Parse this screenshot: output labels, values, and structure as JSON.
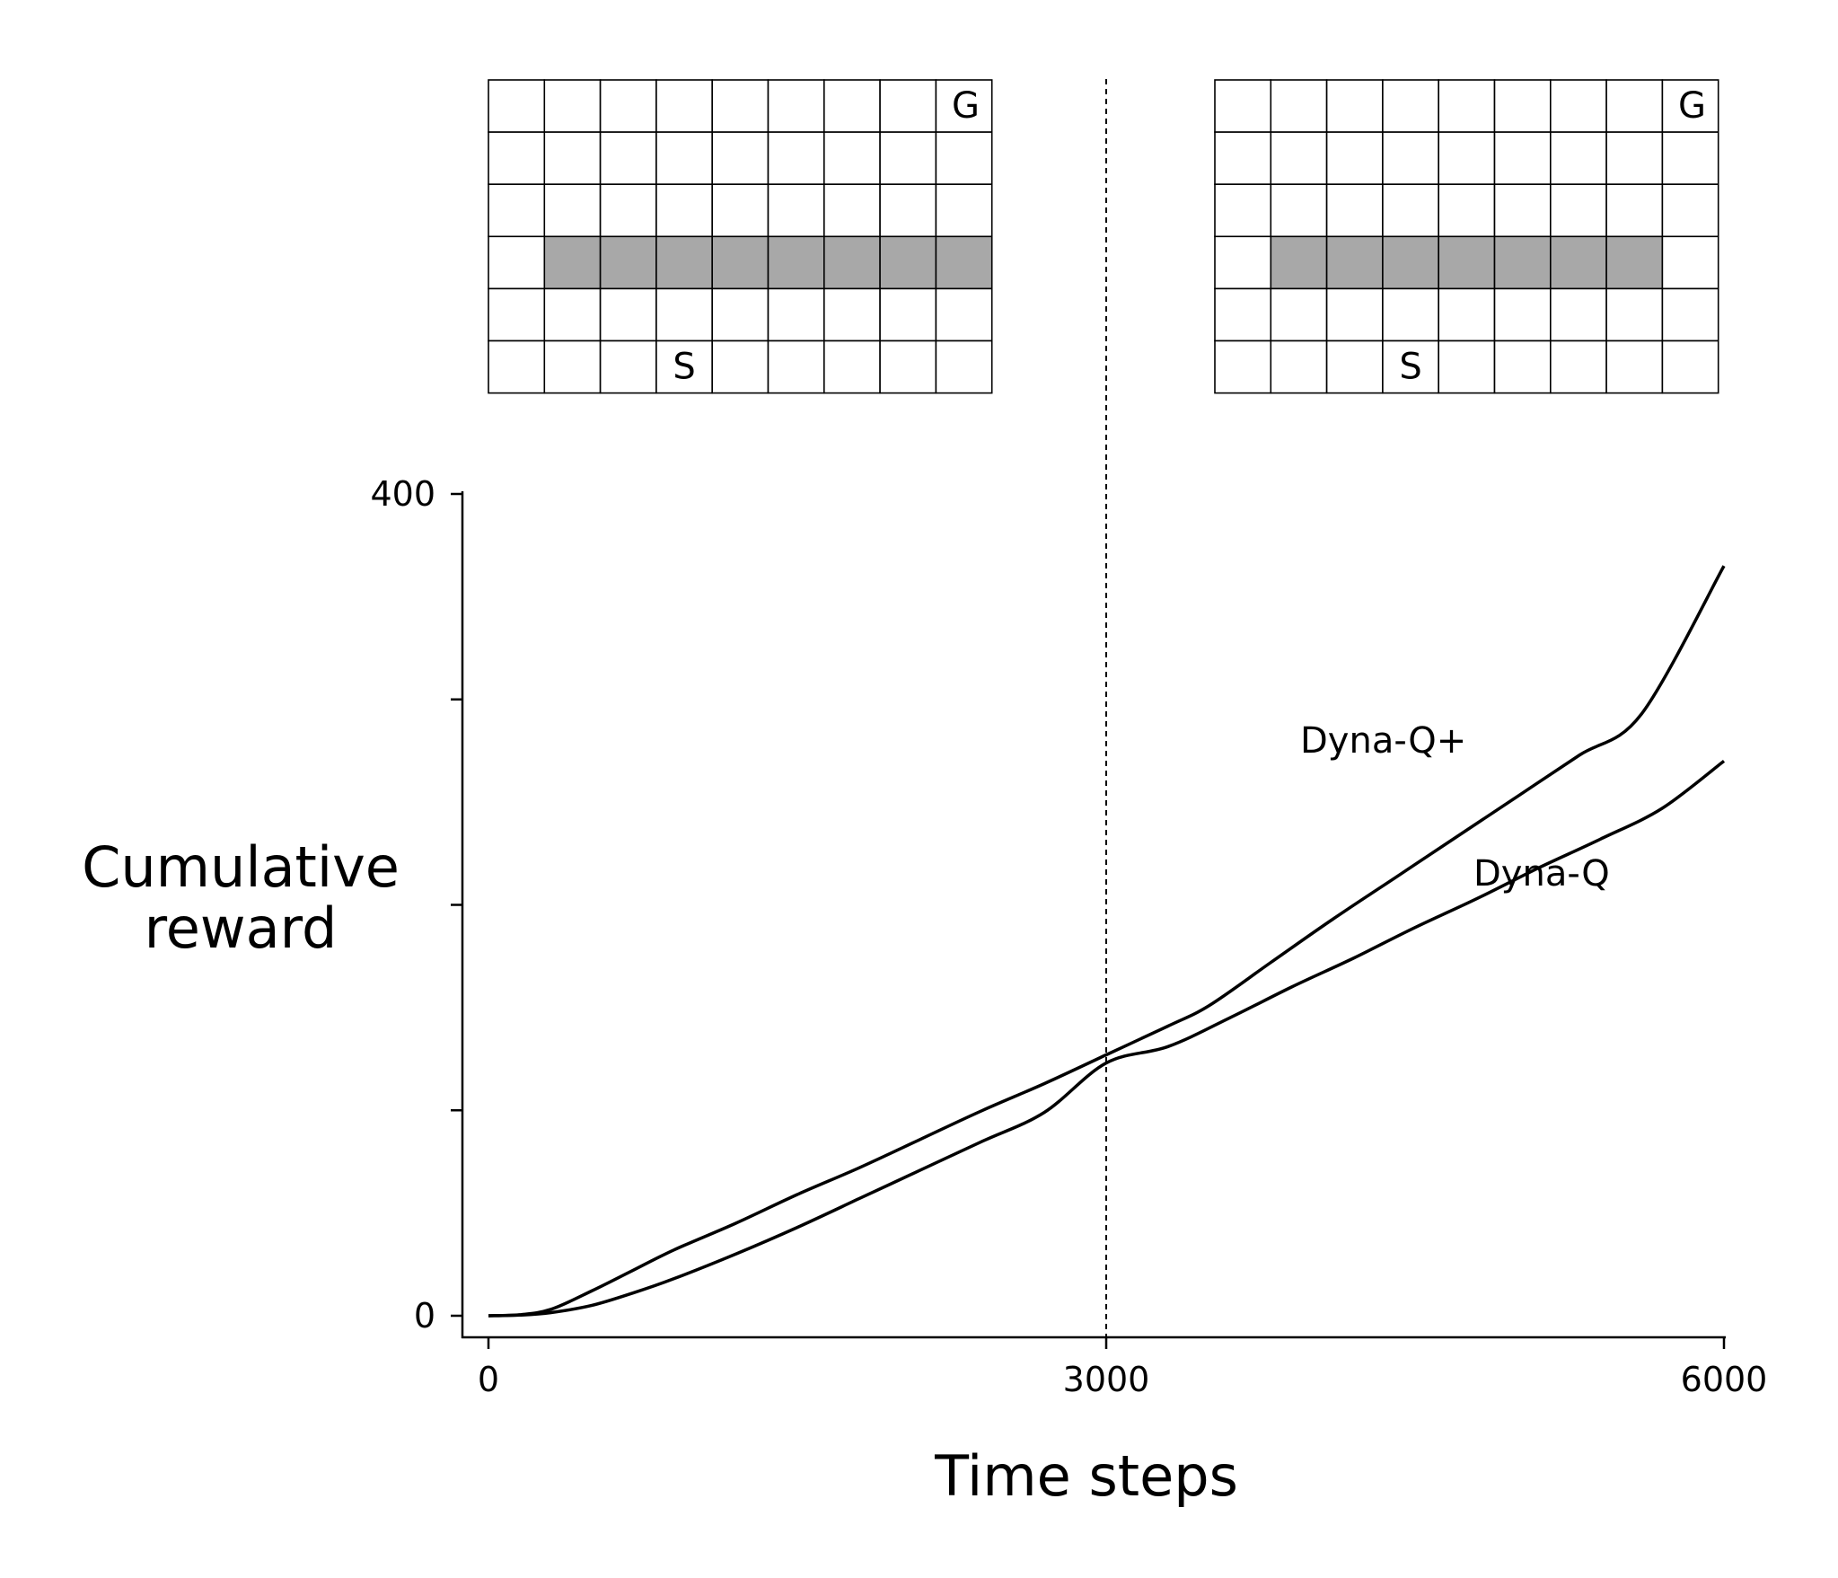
{
  "chart_data": {
    "type": "line",
    "xlabel": "Time steps",
    "ylabel_lines": [
      "Cumulative",
      "reward"
    ],
    "xlim": [
      0,
      6000
    ],
    "ylim": [
      0,
      400
    ],
    "xticks": [
      0,
      3000,
      6000
    ],
    "xtick_labels": [
      "0",
      "3000",
      "6000"
    ],
    "yticks": [
      0,
      100,
      200,
      300,
      400
    ],
    "ytick_labels": [
      "0",
      "",
      "",
      "",
      "400"
    ],
    "grid": false,
    "change_point": 3000,
    "series": [
      {
        "name": "Dyna-Q+",
        "x": [
          0,
          150,
          300,
          500,
          700,
          900,
          1200,
          1500,
          1800,
          2100,
          2400,
          2700,
          3000,
          3300,
          3500,
          3800,
          4100,
          4400,
          4700,
          5000,
          5300,
          5600,
          6000
        ],
        "y": [
          0,
          0.5,
          3,
          12,
          22,
          32,
          45,
          59,
          72,
          86,
          100,
          113,
          127,
          141,
          151,
          172,
          193,
          213,
          233,
          253,
          273,
          293,
          365
        ]
      },
      {
        "name": "Dyna-Q",
        "x": [
          0,
          150,
          300,
          500,
          700,
          900,
          1200,
          1500,
          1800,
          2100,
          2400,
          2700,
          3000,
          3300,
          3600,
          3900,
          4200,
          4500,
          4800,
          5100,
          5400,
          5700,
          6000
        ],
        "y": [
          0,
          0.3,
          1.5,
          5,
          11,
          18,
          30,
          43,
          57,
          71,
          85,
          99,
          123,
          131,
          145,
          160,
          174,
          189,
          203,
          218,
          232,
          247,
          270
        ]
      }
    ],
    "series_labels": [
      "Dyna-Q+",
      "Dyna-Q"
    ]
  },
  "mazes": [
    {
      "rows": 6,
      "cols": 9,
      "wall_row": 3,
      "wall_cols": [
        1,
        2,
        3,
        4,
        5,
        6,
        7,
        8
      ],
      "goal": {
        "row": 0,
        "col": 8,
        "label": "G"
      },
      "start": {
        "row": 5,
        "col": 3,
        "label": "S"
      }
    },
    {
      "rows": 6,
      "cols": 9,
      "wall_row": 3,
      "wall_cols": [
        1,
        2,
        3,
        4,
        5,
        6,
        7
      ],
      "goal": {
        "row": 0,
        "col": 8,
        "label": "G"
      },
      "start": {
        "row": 5,
        "col": 3,
        "label": "S"
      }
    }
  ],
  "colors": {
    "line": "#000000",
    "wall": "#a8a8a8",
    "cell_border": "#000000",
    "background": "#ffffff"
  }
}
